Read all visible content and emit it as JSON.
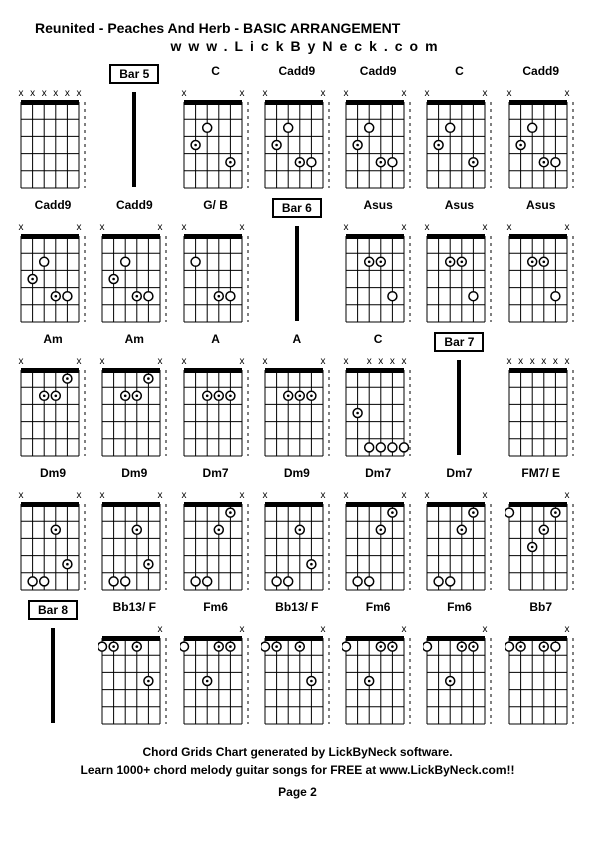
{
  "header": {
    "title": "Reunited - Peaches And Herb - BASIC ARRANGEMENT",
    "website": "www.LickByNeck.com"
  },
  "footer": {
    "line1": "Chord Grids Chart generated by LickByNeck software.",
    "line2": "Learn 1000+ chord melody guitar songs for FREE at www.LickByNeck.com!!",
    "page": "Page 2"
  },
  "diagram_style": {
    "width": 62,
    "height": 108,
    "grid_color": "#000000",
    "nut_color": "#000000",
    "dot_fill": "#ffffff",
    "dot_stroke": "#000000",
    "x_color": "#000000",
    "frets": 5,
    "strings": 6,
    "font_label": 12
  },
  "cells": [
    {
      "type": "chord",
      "label": "",
      "mutes": [
        1,
        1,
        1,
        1,
        1,
        1
      ],
      "dots": []
    },
    {
      "type": "bar",
      "label": "Bar 5"
    },
    {
      "type": "chord",
      "label": "C",
      "mutes": [
        1,
        0,
        0,
        0,
        0,
        1
      ],
      "dots": [
        [
          2,
          3
        ],
        [
          3,
          2,
          "c"
        ],
        [
          4,
          5,
          "c"
        ]
      ]
    },
    {
      "type": "chord",
      "label": "Cadd9",
      "mutes": [
        1,
        0,
        0,
        0,
        0,
        1
      ],
      "dots": [
        [
          2,
          3
        ],
        [
          3,
          2,
          "c"
        ],
        [
          4,
          4,
          "c"
        ],
        [
          4,
          5
        ]
      ]
    },
    {
      "type": "chord",
      "label": "Cadd9",
      "mutes": [
        1,
        0,
        0,
        0,
        0,
        1
      ],
      "dots": [
        [
          2,
          3
        ],
        [
          3,
          2,
          "c"
        ],
        [
          4,
          4,
          "c"
        ],
        [
          4,
          5
        ]
      ]
    },
    {
      "type": "chord",
      "label": "C",
      "mutes": [
        1,
        0,
        0,
        0,
        0,
        1
      ],
      "dots": [
        [
          2,
          3
        ],
        [
          3,
          2,
          "c"
        ],
        [
          4,
          5,
          "c"
        ]
      ]
    },
    {
      "type": "chord",
      "label": "Cadd9",
      "mutes": [
        1,
        0,
        0,
        0,
        0,
        1
      ],
      "dots": [
        [
          2,
          3
        ],
        [
          3,
          2,
          "c"
        ],
        [
          4,
          4,
          "c"
        ],
        [
          4,
          5
        ]
      ]
    },
    {
      "type": "chord",
      "label": "Cadd9",
      "mutes": [
        1,
        0,
        0,
        0,
        0,
        1
      ],
      "dots": [
        [
          2,
          3
        ],
        [
          3,
          2,
          "c"
        ],
        [
          4,
          4,
          "c"
        ],
        [
          4,
          5
        ]
      ]
    },
    {
      "type": "chord",
      "label": "Cadd9",
      "mutes": [
        1,
        0,
        0,
        0,
        0,
        1
      ],
      "dots": [
        [
          2,
          3
        ],
        [
          3,
          2,
          "c"
        ],
        [
          4,
          4,
          "c"
        ],
        [
          4,
          5
        ]
      ]
    },
    {
      "type": "chord",
      "label": "G/ B",
      "mutes": [
        1,
        0,
        0,
        0,
        0,
        1
      ],
      "dots": [
        [
          2,
          2
        ],
        [
          4,
          4,
          "c"
        ],
        [
          4,
          5
        ]
      ]
    },
    {
      "type": "bar",
      "label": "Bar 6"
    },
    {
      "type": "chord",
      "label": "Asus",
      "mutes": [
        1,
        0,
        0,
        0,
        0,
        1
      ],
      "dots": [
        [
          2,
          3,
          "c"
        ],
        [
          2,
          4,
          "c"
        ],
        [
          4,
          5
        ]
      ]
    },
    {
      "type": "chord",
      "label": "Asus",
      "mutes": [
        1,
        0,
        0,
        0,
        0,
        1
      ],
      "dots": [
        [
          2,
          3,
          "c"
        ],
        [
          2,
          4,
          "c"
        ],
        [
          4,
          5
        ]
      ]
    },
    {
      "type": "chord",
      "label": "Asus",
      "mutes": [
        1,
        0,
        0,
        0,
        0,
        1
      ],
      "dots": [
        [
          2,
          3,
          "c"
        ],
        [
          2,
          4,
          "c"
        ],
        [
          4,
          5
        ]
      ]
    },
    {
      "type": "chord",
      "label": "Am",
      "mutes": [
        1,
        0,
        0,
        0,
        0,
        1
      ],
      "dots": [
        [
          1,
          5,
          "c"
        ],
        [
          2,
          3,
          "c"
        ],
        [
          2,
          4,
          "c"
        ]
      ]
    },
    {
      "type": "chord",
      "label": "Am",
      "mutes": [
        1,
        0,
        0,
        0,
        0,
        1
      ],
      "dots": [
        [
          1,
          5,
          "c"
        ],
        [
          2,
          3,
          "c"
        ],
        [
          2,
          4,
          "c"
        ]
      ]
    },
    {
      "type": "chord",
      "label": "A",
      "mutes": [
        1,
        0,
        0,
        0,
        0,
        1
      ],
      "dots": [
        [
          2,
          3,
          "c"
        ],
        [
          2,
          4,
          "c"
        ],
        [
          2,
          5,
          "c"
        ]
      ]
    },
    {
      "type": "chord",
      "label": "A",
      "mutes": [
        1,
        0,
        0,
        0,
        0,
        1
      ],
      "dots": [
        [
          2,
          3,
          "c"
        ],
        [
          2,
          4,
          "c"
        ],
        [
          2,
          5,
          "c"
        ]
      ]
    },
    {
      "type": "chord",
      "label": "C",
      "mutes": [
        1,
        0,
        1,
        1,
        1,
        1
      ],
      "dots": [
        [
          3,
          2,
          "c"
        ],
        [
          5,
          3
        ],
        [
          5,
          4
        ],
        [
          5,
          5
        ],
        [
          5,
          6
        ]
      ]
    },
    {
      "type": "bar",
      "label": "Bar 7"
    },
    {
      "type": "chord",
      "label": "",
      "mutes": [
        1,
        1,
        1,
        1,
        1,
        1
      ],
      "dots": []
    },
    {
      "type": "chord",
      "label": "Dm9",
      "mutes": [
        1,
        0,
        0,
        0,
        0,
        1
      ],
      "dots": [
        [
          2,
          4,
          "c"
        ],
        [
          4,
          5,
          "c"
        ],
        [
          5,
          2
        ],
        [
          5,
          3
        ]
      ]
    },
    {
      "type": "chord",
      "label": "Dm9",
      "mutes": [
        1,
        0,
        0,
        0,
        0,
        1
      ],
      "dots": [
        [
          2,
          4,
          "c"
        ],
        [
          4,
          5,
          "c"
        ],
        [
          5,
          2
        ],
        [
          5,
          3
        ]
      ]
    },
    {
      "type": "chord",
      "label": "Dm7",
      "mutes": [
        1,
        0,
        0,
        0,
        0,
        1
      ],
      "dots": [
        [
          1,
          5,
          "c"
        ],
        [
          2,
          4,
          "c"
        ],
        [
          5,
          2
        ],
        [
          5,
          3
        ]
      ]
    },
    {
      "type": "chord",
      "label": "Dm9",
      "mutes": [
        1,
        0,
        0,
        0,
        0,
        1
      ],
      "dots": [
        [
          2,
          4,
          "c"
        ],
        [
          4,
          5,
          "c"
        ],
        [
          5,
          2
        ],
        [
          5,
          3
        ]
      ]
    },
    {
      "type": "chord",
      "label": "Dm7",
      "mutes": [
        1,
        0,
        0,
        0,
        0,
        1
      ],
      "dots": [
        [
          1,
          5,
          "c"
        ],
        [
          2,
          4,
          "c"
        ],
        [
          5,
          2
        ],
        [
          5,
          3
        ]
      ]
    },
    {
      "type": "chord",
      "label": "Dm7",
      "mutes": [
        1,
        0,
        0,
        0,
        0,
        1
      ],
      "dots": [
        [
          1,
          5,
          "c"
        ],
        [
          2,
          4,
          "c"
        ],
        [
          5,
          2
        ],
        [
          5,
          3
        ]
      ]
    },
    {
      "type": "chord",
      "label": "FM7/ E",
      "mutes": [
        0,
        0,
        0,
        0,
        0,
        1
      ],
      "dots": [
        [
          1,
          1
        ],
        [
          1,
          5,
          "c"
        ],
        [
          2,
          4,
          "c"
        ],
        [
          3,
          3,
          "c"
        ]
      ]
    },
    {
      "type": "bar",
      "label": "Bar 8"
    },
    {
      "type": "chord",
      "label": "Bb13/ F",
      "mutes": [
        0,
        0,
        0,
        0,
        0,
        1
      ],
      "dots": [
        [
          1,
          1
        ],
        [
          1,
          2,
          "c"
        ],
        [
          1,
          4,
          "c"
        ],
        [
          3,
          5,
          "c"
        ]
      ]
    },
    {
      "type": "chord",
      "label": "Fm6",
      "mutes": [
        0,
        0,
        0,
        0,
        0,
        1
      ],
      "dots": [
        [
          1,
          1
        ],
        [
          1,
          4,
          "c"
        ],
        [
          1,
          5,
          "c"
        ],
        [
          3,
          3,
          "c"
        ]
      ]
    },
    {
      "type": "chord",
      "label": "Bb13/ F",
      "mutes": [
        0,
        0,
        0,
        0,
        0,
        1
      ],
      "dots": [
        [
          1,
          1
        ],
        [
          1,
          2,
          "c"
        ],
        [
          1,
          4,
          "c"
        ],
        [
          3,
          5,
          "c"
        ]
      ]
    },
    {
      "type": "chord",
      "label": "Fm6",
      "mutes": [
        0,
        0,
        0,
        0,
        0,
        1
      ],
      "dots": [
        [
          1,
          1
        ],
        [
          1,
          4,
          "c"
        ],
        [
          1,
          5,
          "c"
        ],
        [
          3,
          3,
          "c"
        ]
      ]
    },
    {
      "type": "chord",
      "label": "Fm6",
      "mutes": [
        0,
        0,
        0,
        0,
        0,
        1
      ],
      "dots": [
        [
          1,
          1
        ],
        [
          1,
          4,
          "c"
        ],
        [
          1,
          5,
          "c"
        ],
        [
          3,
          3,
          "c"
        ]
      ]
    },
    {
      "type": "chord",
      "label": "Bb7",
      "mutes": [
        0,
        0,
        0,
        0,
        0,
        1
      ],
      "dots": [
        [
          1,
          1
        ],
        [
          1,
          2,
          "c"
        ],
        [
          1,
          4,
          "c"
        ],
        [
          1,
          5
        ]
      ]
    }
  ]
}
